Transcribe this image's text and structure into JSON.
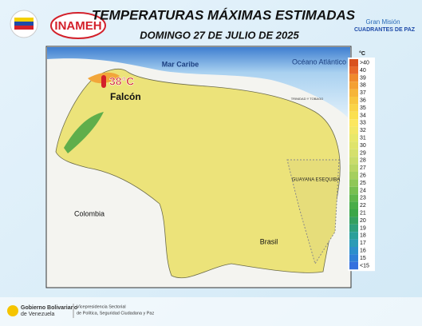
{
  "header": {
    "title": "TEMPERATURAS MÁXIMAS ESTIMADAS",
    "date": "DOMINGO 27 DE JULIO DE 2025",
    "logo_left": "INAMEH",
    "logo_right_top": "Gran Misión",
    "logo_right_bottom": "CUADRANTES DE PAZ"
  },
  "map": {
    "sea": "Mar Caribe",
    "ocean": "Océano Atlántico",
    "country_west": "Colombia",
    "country_south": "Brasil",
    "territory": "GUAYANA ESEQUIBA",
    "neighbor": "TRINIDAD Y TOBAGO",
    "highlight_value": "38°C",
    "highlight_place": "Falcón"
  },
  "legend": {
    "unit": "°C",
    "items": [
      {
        "label": ">40",
        "color": "#d9531f"
      },
      {
        "label": "40",
        "color": "#e8692a"
      },
      {
        "label": "39",
        "color": "#f08a2c"
      },
      {
        "label": "38",
        "color": "#f4a033"
      },
      {
        "label": "37",
        "color": "#f6b53a"
      },
      {
        "label": "36",
        "color": "#f8c640"
      },
      {
        "label": "35",
        "color": "#fad448"
      },
      {
        "label": "34",
        "color": "#fbe050"
      },
      {
        "label": "33",
        "color": "#fce75f"
      },
      {
        "label": "32",
        "color": "#f3e866"
      },
      {
        "label": "31",
        "color": "#e8e86a"
      },
      {
        "label": "30",
        "color": "#dfe46b"
      },
      {
        "label": "29",
        "color": "#d5e06c"
      },
      {
        "label": "28",
        "color": "#c9dc6a"
      },
      {
        "label": "27",
        "color": "#b9d665"
      },
      {
        "label": "26",
        "color": "#a5cf5e"
      },
      {
        "label": "25",
        "color": "#8fc757"
      },
      {
        "label": "24",
        "color": "#77bf50"
      },
      {
        "label": "23",
        "color": "#5fb64b"
      },
      {
        "label": "22",
        "color": "#49ad48"
      },
      {
        "label": "21",
        "color": "#3aa648"
      },
      {
        "label": "20",
        "color": "#33a060"
      },
      {
        "label": "19",
        "color": "#2fa07c"
      },
      {
        "label": "18",
        "color": "#2ca09a"
      },
      {
        "label": "17",
        "color": "#2b9bb6"
      },
      {
        "label": "16",
        "color": "#2d8fcb"
      },
      {
        "label": "15",
        "color": "#3080d6"
      },
      {
        "label": "<15",
        "color": "#3570de"
      }
    ]
  },
  "footer": {
    "gov_line1": "Gobierno Bolivariano",
    "gov_line2": "de Venezuela",
    "vice_line1": "Vicepresidencia Sectorial",
    "vice_line2": "de Política, Seguridad Ciudadana y Paz"
  }
}
